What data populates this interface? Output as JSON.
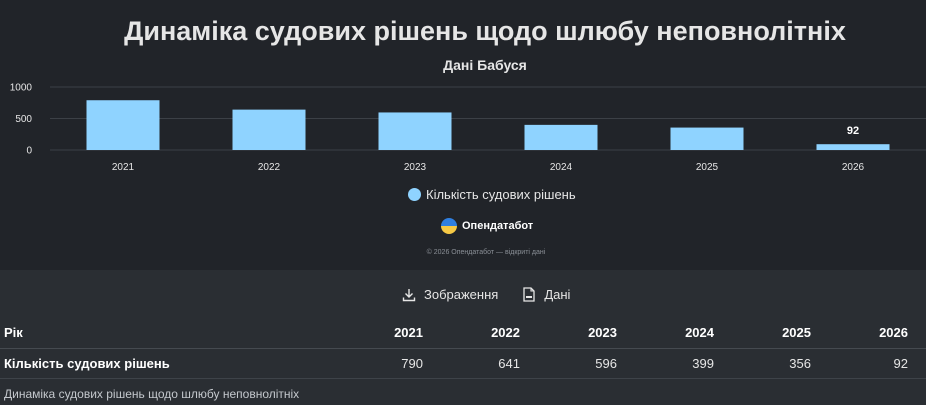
{
  "chart": {
    "title": "Динаміка судових рішень щодо шлюбу неповнолітніх",
    "subtitle": "Дані Бабуся",
    "legend_label": "Кількість судових рішень",
    "brand": "Опендатабот",
    "copyright": "© 2026 Опендатабот — відкриті дані"
  },
  "chart_data": {
    "type": "bar",
    "title": "Динаміка судових рішень щодо шлюбу неповнолітніх",
    "subtitle": "Дані Бабуся",
    "categories": [
      "2021",
      "2022",
      "2023",
      "2024",
      "2025",
      "2026"
    ],
    "series": [
      {
        "name": "Кількість судових рішень",
        "values": [
          790,
          641,
          596,
          399,
          356,
          92
        ],
        "color": "#8fd3ff"
      }
    ],
    "y_ticks": [
      "0",
      "500",
      "1000"
    ],
    "ylim": [
      0,
      1000
    ],
    "grid": true,
    "legend_position": "bottom",
    "data_labels": [
      {
        "category": "2026",
        "text": "92"
      }
    ]
  },
  "actions": {
    "image_label": "Зображення",
    "data_label": "Дані"
  },
  "table": {
    "header_label": "Рік",
    "years": [
      "2021",
      "2022",
      "2023",
      "2024",
      "2025",
      "2026"
    ],
    "row_label": "Кількість судових рішень",
    "values": [
      "790",
      "641",
      "596",
      "399",
      "356",
      "92"
    ]
  },
  "caption": "Динаміка судових рішень щодо шлюбу неповнолітніх"
}
